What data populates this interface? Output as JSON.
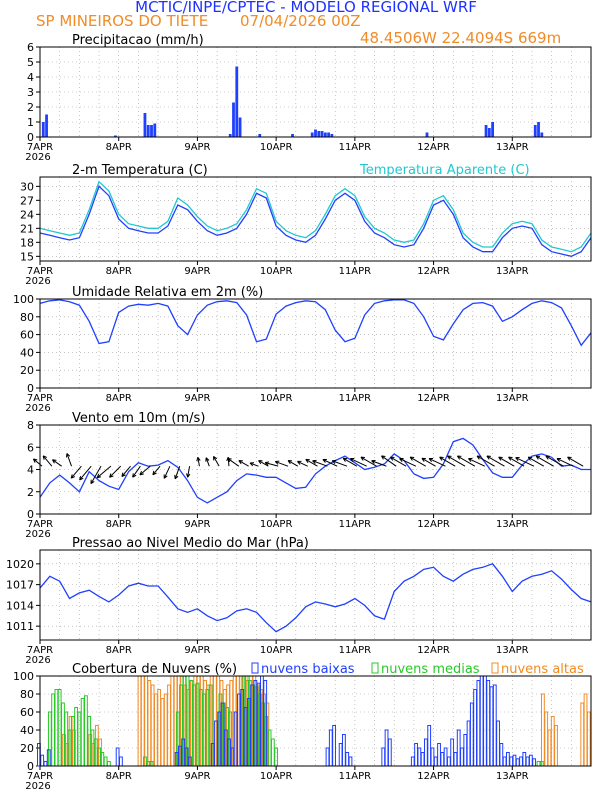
{
  "header": {
    "line1": "MCTIC/INPE/CPTEC - MODELO REGIONAL WRF",
    "location": "SP MINEIROS DO TIETE",
    "run": "07/04/2026 00Z",
    "coords": "48.4506W 22.4094S 669m"
  },
  "colors": {
    "title": "#1e32ff",
    "orange": "#f08c28",
    "blue": "#2040ff",
    "cyan": "#20c8d0",
    "green": "#28c828",
    "grid": "#a0a0a0"
  },
  "x_axis": {
    "day_labels": [
      "7APR",
      "8APR",
      "9APR",
      "10APR",
      "11APR",
      "12APR",
      "13APR"
    ],
    "year_label": "2026"
  },
  "chart_data": [
    {
      "type": "bar",
      "title": "Precipitacao (mm/h)",
      "x_unit": "hours since 07/04/2026 00Z",
      "ylim": [
        0,
        6
      ],
      "yticks": [
        0,
        1,
        2,
        3,
        4,
        5,
        6
      ],
      "hours": [
        1,
        2,
        23,
        32,
        33,
        34,
        35,
        58,
        59,
        60,
        61,
        67,
        77,
        83,
        84,
        85,
        86,
        87,
        88,
        89,
        118,
        136,
        137,
        138,
        151,
        152,
        153
      ],
      "values": [
        1.0,
        1.5,
        0.1,
        1.6,
        0.8,
        0.8,
        0.9,
        0.2,
        2.3,
        4.7,
        1.3,
        0.2,
        0.2,
        0.3,
        0.5,
        0.4,
        0.4,
        0.3,
        0.3,
        0.2,
        0.3,
        0.8,
        0.6,
        1.0,
        0.8,
        1.0,
        0.3
      ]
    },
    {
      "type": "line",
      "title": "2-m Temperatura (C)",
      "ylim": [
        14,
        32
      ],
      "yticks": [
        15,
        18,
        21,
        24,
        27,
        30
      ],
      "x_hours": [
        0,
        3,
        6,
        9,
        12,
        15,
        18,
        21,
        24,
        27,
        30,
        33,
        36,
        39,
        42,
        45,
        48,
        51,
        54,
        57,
        60,
        63,
        66,
        69,
        72,
        75,
        78,
        81,
        84,
        87,
        90,
        93,
        96,
        99,
        102,
        105,
        108,
        111,
        114,
        117,
        120,
        123,
        126,
        129,
        132,
        135,
        138,
        141,
        144,
        147,
        150,
        153,
        156,
        159,
        162,
        165,
        168
      ],
      "series": [
        {
          "name": "2-m Temperatura (C)",
          "values": [
            20,
            19.5,
            19,
            18.5,
            19,
            24,
            30,
            28,
            23,
            21,
            20.5,
            20,
            20,
            21.5,
            26,
            25,
            22.5,
            20.5,
            19.5,
            20,
            21,
            24,
            28.5,
            27.5,
            21.5,
            19.5,
            18.5,
            18,
            19.5,
            23,
            27,
            28.5,
            27,
            22.5,
            20,
            19,
            17.5,
            17,
            17.5,
            21,
            26,
            27,
            24,
            19,
            17,
            16,
            16,
            19,
            21,
            21.5,
            21,
            17.5,
            16,
            15.5,
            15,
            16,
            19
          ]
        },
        {
          "name": "Temperatura Aparente (C)",
          "values": [
            21,
            20.5,
            20,
            19.5,
            20,
            25,
            31,
            29,
            24,
            22,
            21.5,
            21,
            21,
            22.5,
            27.5,
            26,
            23.5,
            21.5,
            20.5,
            21,
            22,
            25,
            29.5,
            28.5,
            22.5,
            20.5,
            19.5,
            19,
            20.5,
            24,
            28,
            29.5,
            28,
            23.5,
            21,
            20,
            18.5,
            18,
            18.5,
            22,
            27,
            28,
            25,
            20,
            18,
            17,
            17,
            20,
            22,
            22.5,
            22,
            18.5,
            17,
            16.5,
            16,
            17,
            20
          ]
        }
      ]
    },
    {
      "type": "line",
      "title": "Umidade Relativa em 2m (%)",
      "ylim": [
        0,
        100
      ],
      "yticks": [
        0,
        20,
        40,
        60,
        80,
        100
      ],
      "x_hours": [
        0,
        3,
        6,
        9,
        12,
        15,
        18,
        21,
        24,
        27,
        30,
        33,
        36,
        39,
        42,
        45,
        48,
        51,
        54,
        57,
        60,
        63,
        66,
        69,
        72,
        75,
        78,
        81,
        84,
        87,
        90,
        93,
        96,
        99,
        102,
        105,
        108,
        111,
        114,
        117,
        120,
        123,
        126,
        129,
        132,
        135,
        138,
        141,
        144,
        147,
        150,
        153,
        156,
        159,
        162,
        165,
        168
      ],
      "series": [
        {
          "name": "Umidade Relativa em 2m (%)",
          "values": [
            95,
            98,
            99,
            97,
            93,
            75,
            50,
            52,
            85,
            92,
            94,
            93,
            95,
            92,
            70,
            60,
            82,
            93,
            97,
            98,
            96,
            82,
            52,
            55,
            83,
            92,
            96,
            98,
            97,
            88,
            65,
            52,
            56,
            82,
            95,
            98,
            99,
            99,
            95,
            80,
            58,
            54,
            72,
            88,
            95,
            96,
            92,
            75,
            80,
            88,
            95,
            98,
            96,
            90,
            70,
            48,
            62
          ]
        }
      ]
    },
    {
      "type": "line",
      "title": "Vento em 10m (m/s)",
      "ylim": [
        0,
        8
      ],
      "yticks": [
        0,
        2,
        4,
        6,
        8
      ],
      "x_hours": [
        0,
        3,
        6,
        9,
        12,
        15,
        18,
        21,
        24,
        27,
        30,
        33,
        36,
        39,
        42,
        45,
        48,
        51,
        54,
        57,
        60,
        63,
        66,
        69,
        72,
        75,
        78,
        81,
        84,
        87,
        90,
        93,
        96,
        99,
        102,
        105,
        108,
        111,
        114,
        117,
        120,
        123,
        126,
        129,
        132,
        135,
        138,
        141,
        144,
        147,
        150,
        153,
        156,
        159,
        162,
        165,
        168
      ],
      "series": [
        {
          "name": "Vento em 10m (m/s)",
          "values": [
            1.5,
            2.8,
            3.5,
            2.8,
            2,
            3.8,
            3,
            2.5,
            2.2,
            3.8,
            4.6,
            4.3,
            4.4,
            4.8,
            4.2,
            3,
            1.5,
            1,
            1.5,
            2,
            3,
            3.6,
            3.5,
            3.3,
            3.3,
            2.8,
            2.3,
            2.4,
            3.6,
            4.3,
            4.8,
            5.2,
            4.6,
            4,
            4.2,
            4.5,
            5.4,
            4.8,
            3.6,
            3.2,
            3.3,
            4.5,
            6.5,
            6.8,
            6.2,
            4.9,
            3.7,
            3.3,
            3.3,
            4.4,
            5.2,
            5.4,
            5.1,
            4.3,
            4.4,
            4,
            4
          ]
        }
      ]
    },
    {
      "type": "line",
      "title": "Pressao ao Nivel Medio do Mar (hPa)",
      "ylim": [
        1009,
        1022
      ],
      "yticks": [
        1011,
        1014,
        1017,
        1020
      ],
      "x_hours": [
        0,
        3,
        6,
        9,
        12,
        15,
        18,
        21,
        24,
        27,
        30,
        33,
        36,
        39,
        42,
        45,
        48,
        51,
        54,
        57,
        60,
        63,
        66,
        69,
        72,
        75,
        78,
        81,
        84,
        87,
        90,
        93,
        96,
        99,
        102,
        105,
        108,
        111,
        114,
        117,
        120,
        123,
        126,
        129,
        132,
        135,
        138,
        141,
        144,
        147,
        150,
        153,
        156,
        159,
        162,
        165,
        168
      ],
      "series": [
        {
          "name": "Pressao ao Nivel Medio do Mar (hPa)",
          "values": [
            1016.5,
            1018.2,
            1017.5,
            1015,
            1015.8,
            1016.2,
            1015.3,
            1014.5,
            1015.5,
            1016.8,
            1017.2,
            1016.8,
            1016.8,
            1015.2,
            1013.5,
            1013,
            1013.5,
            1012.5,
            1011.8,
            1012.2,
            1013.2,
            1013.5,
            1013,
            1011.5,
            1010.2,
            1011,
            1012.2,
            1013.8,
            1014.5,
            1014.2,
            1013.8,
            1014.2,
            1015,
            1014,
            1012.5,
            1012,
            1016,
            1017.5,
            1018.2,
            1019.2,
            1019.5,
            1018.2,
            1017.5,
            1018.5,
            1019.2,
            1019.5,
            1020,
            1018.2,
            1016,
            1017.5,
            1018.2,
            1018.5,
            1019,
            1017.8,
            1016.3,
            1015,
            1014.5
          ]
        }
      ]
    },
    {
      "type": "bar",
      "title": "Cobertura de Nuvens (%)",
      "ylim": [
        0,
        100
      ],
      "yticks": [
        0,
        20,
        40,
        60,
        80,
        100
      ],
      "legend": [
        "nuvens baixas",
        "nuvens medias",
        "nuvens altas"
      ],
      "series": [
        {
          "name": "nuvens baixas",
          "hours": [
            0,
            1,
            2,
            3,
            24,
            25,
            42,
            43,
            44,
            45,
            46,
            53,
            54,
            55,
            56,
            57,
            58,
            59,
            60,
            61,
            62,
            63,
            64,
            65,
            66,
            67,
            68,
            69,
            88,
            89,
            90,
            92,
            93,
            94,
            95,
            105,
            106,
            107,
            114,
            115,
            116,
            117,
            118,
            119,
            120,
            121,
            122,
            123,
            124,
            125,
            126,
            127,
            128,
            129,
            130,
            131,
            132,
            133,
            134,
            135,
            136,
            137,
            138,
            139,
            140,
            141,
            142,
            143,
            144,
            145,
            146,
            147,
            148,
            149,
            150,
            151
          ],
          "values": [
            25,
            12,
            5,
            18,
            20,
            10,
            15,
            22,
            30,
            20,
            10,
            25,
            50,
            60,
            70,
            40,
            30,
            20,
            60,
            80,
            85,
            65,
            75,
            90,
            95,
            92,
            100,
            95,
            20,
            40,
            45,
            25,
            35,
            15,
            10,
            20,
            40,
            30,
            10,
            25,
            20,
            15,
            30,
            45,
            20,
            10,
            25,
            15,
            20,
            10,
            30,
            15,
            40,
            20,
            35,
            50,
            70,
            85,
            95,
            100,
            100,
            95,
            88,
            90,
            50,
            25,
            10,
            15,
            10,
            12,
            8,
            10,
            15,
            10,
            12,
            8
          ]
        },
        {
          "name": "nuvens medias",
          "hours": [
            3,
            4,
            5,
            6,
            7,
            8,
            9,
            10,
            11,
            12,
            13,
            14,
            15,
            16,
            17,
            18,
            19,
            20,
            21,
            32,
            33,
            34,
            42,
            43,
            44,
            45,
            46,
            47,
            48,
            49,
            50,
            51,
            52,
            55,
            56,
            57,
            58,
            62,
            63,
            64,
            65,
            66,
            67,
            68,
            69,
            70,
            71,
            72,
            152,
            153
          ],
          "values": [
            60,
            80,
            85,
            85,
            70,
            60,
            40,
            55,
            65,
            60,
            75,
            78,
            55,
            40,
            30,
            20,
            15,
            10,
            5,
            10,
            5,
            5,
            60,
            90,
            100,
            100,
            95,
            90,
            92,
            85,
            80,
            85,
            90,
            80,
            70,
            65,
            60,
            100,
            100,
            95,
            90,
            88,
            80,
            70,
            55,
            40,
            30,
            20,
            5,
            5
          ]
        },
        {
          "name": "nuvens altas",
          "hours": [
            7,
            8,
            9,
            10,
            15,
            16,
            17,
            18,
            30,
            31,
            32,
            33,
            34,
            35,
            36,
            37,
            38,
            39,
            40,
            41,
            42,
            43,
            44,
            45,
            46,
            47,
            48,
            49,
            50,
            51,
            52,
            53,
            54,
            55,
            56,
            57,
            58,
            59,
            60,
            61,
            62,
            63,
            64,
            65,
            66,
            67,
            68,
            69,
            153,
            154,
            155,
            156,
            157,
            165,
            166,
            167
          ],
          "values": [
            35,
            25,
            55,
            40,
            35,
            25,
            45,
            30,
            100,
            100,
            100,
            95,
            90,
            80,
            85,
            75,
            80,
            90,
            100,
            100,
            100,
            100,
            90,
            85,
            95,
            100,
            100,
            100,
            95,
            90,
            100,
            100,
            100,
            95,
            85,
            90,
            95,
            100,
            100,
            100,
            100,
            95,
            100,
            100,
            90,
            85,
            80,
            70,
            80,
            60,
            40,
            55,
            45,
            70,
            80,
            60
          ]
        }
      ]
    }
  ],
  "wind_barbs": {
    "comment_unit": "direction arrow angles in degrees (0=east, 90=north screen-up), speed on axis in m/s",
    "hours": [
      0,
      3,
      6,
      9,
      12,
      15,
      18,
      21,
      24,
      27,
      30,
      33,
      36,
      39,
      42,
      45,
      48,
      51,
      54,
      57,
      60,
      63,
      66,
      69,
      72,
      75,
      78,
      81,
      84,
      87,
      90,
      93,
      96,
      99,
      102,
      105,
      108,
      111,
      114,
      117,
      120,
      123,
      126,
      129,
      132,
      135,
      138,
      141,
      144,
      147,
      150,
      153,
      156,
      159,
      162,
      165
    ],
    "angles": [
      140,
      130,
      145,
      110,
      230,
      230,
      240,
      220,
      225,
      230,
      235,
      220,
      230,
      245,
      250,
      260,
      100,
      110,
      120,
      95,
      145,
      150,
      160,
      150,
      165,
      160,
      150,
      155,
      150,
      160,
      155,
      160,
      150,
      155,
      150,
      160,
      145,
      150,
      155,
      150,
      150,
      155,
      150,
      150,
      150,
      155,
      150,
      150,
      150,
      150,
      155,
      150,
      150,
      150,
      155,
      150
    ],
    "lengths_m_s": [
      2.5,
      3,
      2.5,
      3,
      3.5,
      4,
      4.5,
      4,
      3.5,
      3,
      3,
      3,
      2.5,
      3,
      3,
      2.5,
      2,
      2,
      2.5,
      2,
      3,
      2.5,
      2,
      2.5,
      3,
      3,
      2.5,
      2.5,
      3,
      3.5,
      3.5,
      3.5,
      3.5,
      4,
      4,
      3.5,
      4,
      4,
      4,
      4,
      3.5,
      4,
      4,
      4.5,
      4.5,
      4,
      4.5,
      4.5,
      4,
      4,
      4.5,
      4,
      4.5,
      4.5,
      4,
      4
    ]
  }
}
